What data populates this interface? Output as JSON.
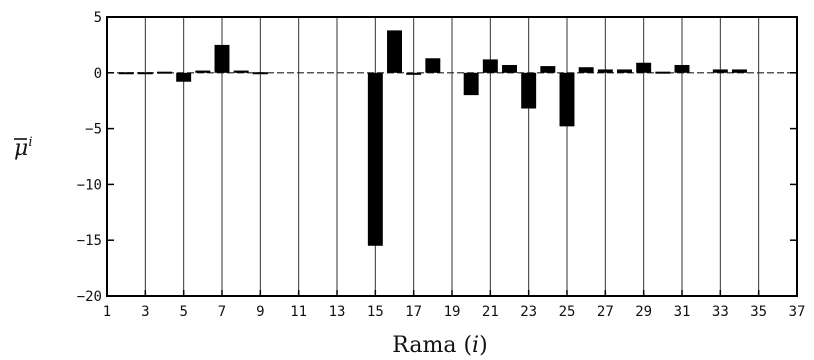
{
  "chart_data": {
    "type": "bar",
    "xlabel": "Rama (i)",
    "xlabel_main": "Rama",
    "xlabel_var": "i",
    "ylabel": "μ̄ⁱ",
    "ylabel_base": "μ",
    "ylabel_sup": "i",
    "xlim": [
      1,
      37
    ],
    "ylim": [
      -20,
      5
    ],
    "grid": {
      "vertical": true,
      "horizontal": false
    },
    "x_ticks": [
      1,
      3,
      5,
      7,
      9,
      11,
      13,
      15,
      17,
      19,
      21,
      23,
      25,
      27,
      29,
      31,
      33,
      35,
      37
    ],
    "y_ticks": [
      5,
      0,
      -5,
      -10,
      -15,
      -20
    ],
    "categories": [
      2,
      3,
      4,
      5,
      6,
      7,
      8,
      9,
      10,
      11,
      12,
      13,
      14,
      15,
      16,
      17,
      18,
      19,
      20,
      21,
      22,
      23,
      24,
      25,
      26,
      27,
      28,
      29,
      30,
      31,
      32,
      33,
      34,
      35,
      36
    ],
    "values": [
      0.05,
      0.05,
      0.1,
      -0.8,
      0.2,
      2.5,
      0.2,
      0.05,
      0.0,
      0.0,
      0.0,
      0.0,
      0.0,
      -15.5,
      3.8,
      -0.1,
      1.3,
      0.0,
      -2.0,
      1.2,
      0.7,
      -3.2,
      0.6,
      -4.8,
      0.5,
      0.3,
      0.3,
      0.9,
      0.1,
      0.7,
      0.0,
      0.3,
      0.3,
      0.0,
      0.0
    ],
    "bar_color": "#000000"
  }
}
